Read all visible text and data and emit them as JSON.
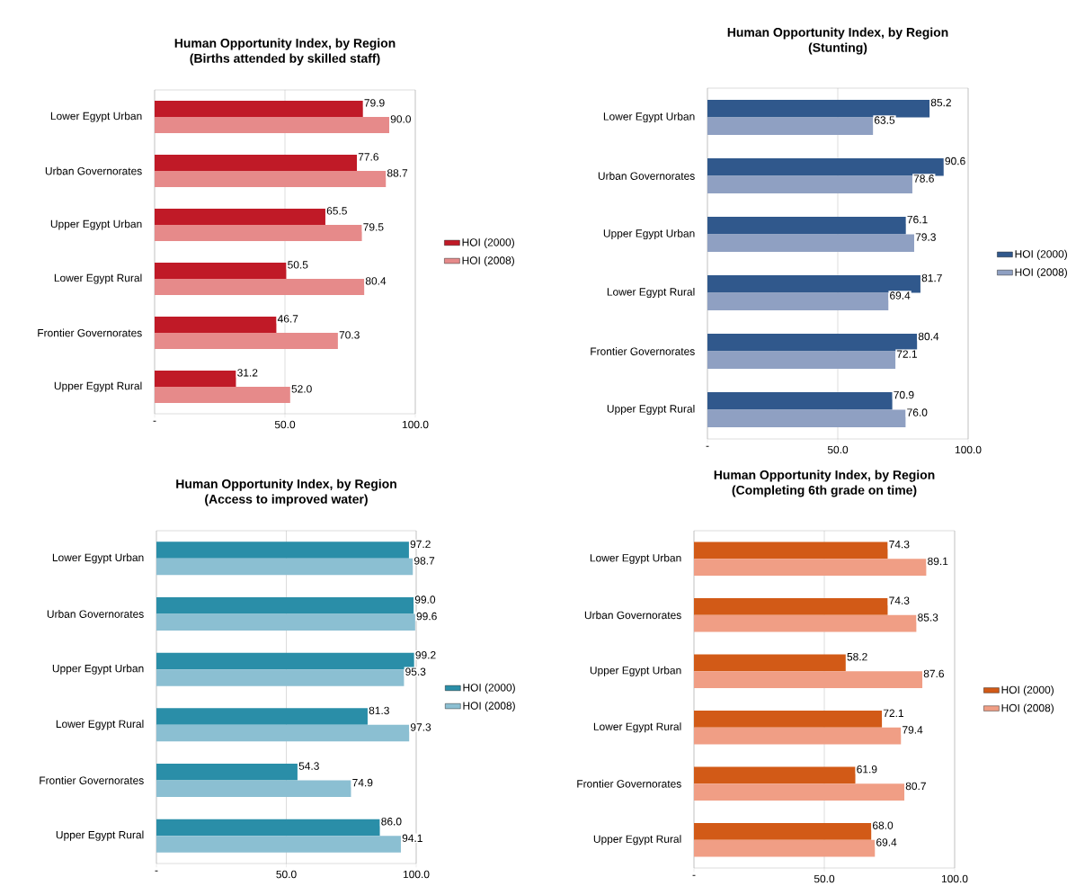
{
  "chart_data": [
    {
      "type": "bar",
      "orientation": "horizontal",
      "title": "Human Opportunity Index, by Region",
      "subtitle": "(Births attended by skilled staff)",
      "categories": [
        "Lower Egypt Urban",
        "Urban Governorates",
        "Upper Egypt Urban",
        "Lower Egypt Rural",
        "Frontier Governorates",
        "Upper Egypt Rural"
      ],
      "xlim": [
        0,
        100
      ],
      "xticks": [
        {
          "value": 0,
          "label": "-"
        },
        {
          "value": 50,
          "label": "50.0"
        },
        {
          "value": 100,
          "label": "100.0"
        }
      ],
      "grid": "x",
      "legend": "right",
      "series": [
        {
          "name": "HOI (2000)",
          "color": "#c01a27",
          "values": [
            79.9,
            77.6,
            65.5,
            50.5,
            46.7,
            31.2
          ],
          "value_labels": [
            "79.9",
            "77.6",
            "65.5",
            "50.5",
            "46.7",
            "31.2"
          ]
        },
        {
          "name": "HOI (2008)",
          "color": "#e68a8a",
          "values": [
            90.0,
            88.7,
            79.5,
            80.4,
            70.3,
            52.0
          ],
          "value_labels": [
            "90.0",
            "88.7",
            "79.5",
            "80.4",
            "70.3",
            "52.0"
          ]
        }
      ]
    },
    {
      "type": "bar",
      "orientation": "horizontal",
      "title": "Human Opportunity Index, by Region",
      "subtitle": "(Stunting)",
      "categories": [
        "Lower Egypt Urban",
        "Urban Governorates",
        "Upper Egypt Urban",
        "Lower Egypt Rural",
        "Frontier Governorates",
        "Upper Egypt Rural"
      ],
      "xlim": [
        0,
        100
      ],
      "xticks": [
        {
          "value": 0,
          "label": "-"
        },
        {
          "value": 50,
          "label": "50.0"
        },
        {
          "value": 100,
          "label": "100.0"
        }
      ],
      "grid": "x",
      "legend": "right",
      "series": [
        {
          "name": "HOI (2000)",
          "color": "#30588c",
          "values": [
            85.2,
            90.6,
            76.1,
            81.7,
            80.4,
            70.9
          ],
          "value_labels": [
            "85.2",
            "90.6",
            "76.1",
            "81.7",
            "80.4",
            "70.9"
          ]
        },
        {
          "name": "HOI (2008)",
          "color": "#8fa0c2",
          "values": [
            63.5,
            78.6,
            79.3,
            69.4,
            72.1,
            76.0
          ],
          "value_labels": [
            "63.5",
            "78.6",
            "79.3",
            "69.4",
            "72.1",
            "76.0"
          ]
        }
      ]
    },
    {
      "type": "bar",
      "orientation": "horizontal",
      "title": "Human Opportunity Index, by Region",
      "subtitle": "(Access to improved water)",
      "categories": [
        "Lower Egypt Urban",
        "Urban Governorates",
        "Upper Egypt Urban",
        "Lower Egypt Rural",
        "Frontier Governorates",
        "Upper Egypt Rural"
      ],
      "xlim": [
        0,
        100
      ],
      "xticks": [
        {
          "value": 0,
          "label": "-"
        },
        {
          "value": 50,
          "label": "50.0"
        },
        {
          "value": 100,
          "label": "100.0"
        }
      ],
      "grid": "x",
      "legend": "right",
      "series": [
        {
          "name": "HOI (2000)",
          "color": "#2a8ea8",
          "values": [
            97.2,
            99.0,
            99.2,
            81.3,
            54.3,
            86.0
          ],
          "value_labels": [
            "97.2",
            "99.0",
            "99.2",
            "81.3",
            "54.3",
            "86.0"
          ]
        },
        {
          "name": "HOI (2008)",
          "color": "#8bbfd2",
          "values": [
            98.7,
            99.6,
            95.3,
            97.3,
            74.9,
            94.1
          ],
          "value_labels": [
            "98.7",
            "99.6",
            "95.3",
            "97.3",
            "74.9",
            "94.1"
          ]
        }
      ]
    },
    {
      "type": "bar",
      "orientation": "horizontal",
      "title": "Human Opportunity Index, by Region",
      "subtitle": "(Completing 6th grade on time)",
      "categories": [
        "Lower Egypt Urban",
        "Urban Governorates",
        "Upper Egypt Urban",
        "Lower Egypt Rural",
        "Frontier Governorates",
        "Upper Egypt Rural"
      ],
      "xlim": [
        0,
        100
      ],
      "xticks": [
        {
          "value": 0,
          "label": "-"
        },
        {
          "value": 50,
          "label": "50.0"
        },
        {
          "value": 100,
          "label": "100.0"
        }
      ],
      "grid": "x",
      "legend": "right",
      "series": [
        {
          "name": "HOI (2000)",
          "color": "#d25a17",
          "values": [
            74.3,
            74.3,
            58.2,
            72.1,
            61.9,
            68.0
          ],
          "value_labels": [
            "74.3",
            "74.3",
            "58.2",
            "72.1",
            "61.9",
            "68.0"
          ]
        },
        {
          "name": "HOI (2008)",
          "color": "#f09e85",
          "values": [
            89.1,
            85.3,
            87.6,
            79.4,
            80.7,
            69.4
          ],
          "value_labels": [
            "89.1",
            "85.3",
            "87.6",
            "79.4",
            "80.7",
            "69.4"
          ]
        }
      ]
    }
  ]
}
